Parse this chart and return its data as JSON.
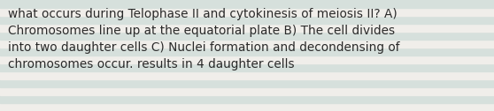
{
  "text": "what occurs during Telophase II and cytokinesis of meiosis II? A)\nChromosomes line up at the equatorial plate B) The cell divides\ninto two daughter cells C) Nuclei formation and decondensing of\nchromosomes occur. results in 4 daughter cells",
  "stripe_colors": [
    "#f0eeea",
    "#d6e0dc",
    "#f0eeea",
    "#d6e0dc",
    "#f0eeea",
    "#d6e0dc",
    "#f0eeea",
    "#d6e0dc",
    "#f0eeea",
    "#d6e0dc",
    "#f0eeea",
    "#d6e0dc",
    "#f0eeea",
    "#d6e0dc"
  ],
  "text_color": "#2a2a2a",
  "font_size": 9.8,
  "fig_width": 5.58,
  "fig_height": 1.26,
  "dpi": 100
}
